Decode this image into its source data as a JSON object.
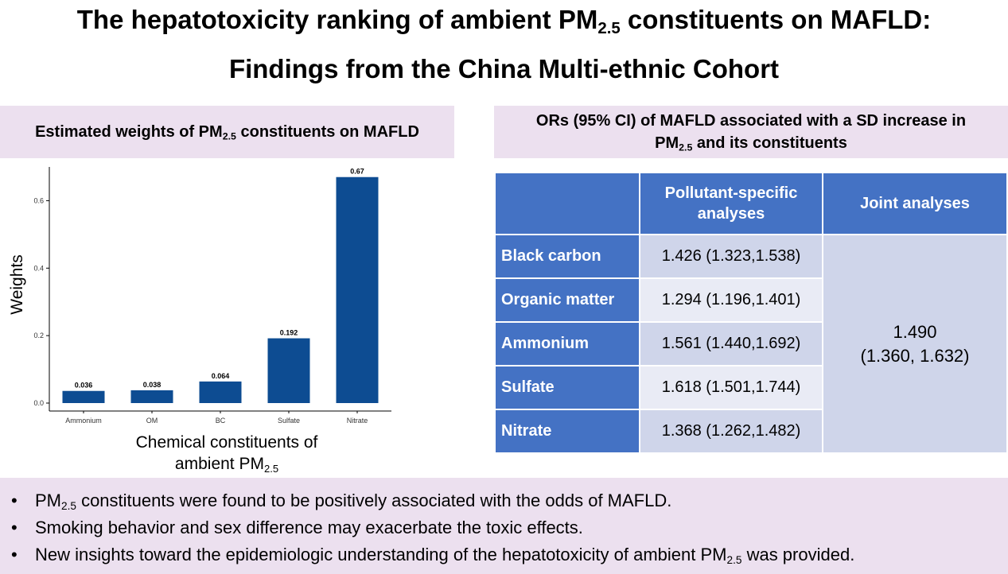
{
  "title": {
    "line1_pre": "The hepatotoxicity ranking of ambient PM",
    "line1_sub": "2.5",
    "line1_post": " constituents on MAFLD:",
    "line2": "Findings from the China Multi-ethnic Cohort"
  },
  "left_panel": {
    "heading_pre": "Estimated weights of PM",
    "heading_sub": "2.5",
    "heading_post": " constituents on MAFLD",
    "xlabel_line1": "Chemical constituents of",
    "xlabel_line2_pre": "ambient PM",
    "xlabel_line2_sub": "2.5"
  },
  "chart_data": {
    "type": "bar",
    "categories": [
      "Ammonium",
      "OM",
      "BC",
      "Sulfate",
      "Nitrate"
    ],
    "values": [
      0.036,
      0.038,
      0.064,
      0.192,
      0.67
    ],
    "data_labels": [
      "0.036",
      "0.038",
      "0.064",
      "0.192",
      "0.67"
    ],
    "ylabel": "Weights",
    "ylim": [
      0,
      0.7
    ],
    "yticks": [
      0.0,
      0.2,
      0.4,
      0.6
    ],
    "ytick_labels": [
      "0.0",
      "0.2",
      "0.4",
      "0.6"
    ],
    "grid": false,
    "bar_color": "#0d4c92"
  },
  "right_panel": {
    "heading_line1": "ORs (95% CI) of MAFLD associated with a SD increase in",
    "heading_line2_pre": "PM",
    "heading_line2_sub": "2.5",
    "heading_line2_post": " and its constituents",
    "table": {
      "col_header_1": "",
      "col_header_2": "Pollutant-specific analyses",
      "col_header_3": "Joint analyses",
      "rows": [
        {
          "label": "Black carbon",
          "value": "1.426 (1.323,1.538)"
        },
        {
          "label": "Organic matter",
          "value": "1.294 (1.196,1.401)"
        },
        {
          "label": "Ammonium",
          "value": "1.561 (1.440,1.692)"
        },
        {
          "label": "Sulfate",
          "value": "1.618 (1.501,1.744)"
        },
        {
          "label": "Nitrate",
          "value": "1.368 (1.262,1.482)"
        }
      ],
      "joint_line1": "1.490",
      "joint_line2": "(1.360, 1.632)"
    },
    "header_color": "#4472c4"
  },
  "findings": {
    "bullet": "•",
    "f1_pre": "PM",
    "f1_sub": "2.5",
    "f1_post": " constituents were found to be positively associated with the odds of MAFLD.",
    "f2": "Smoking behavior and sex difference may exacerbate the toxic effects.",
    "f3_pre": "New insights toward the epidemiologic understanding of the hepatotoxicity of ambient PM",
    "f3_sub": "2.5",
    "f3_post": " was provided."
  }
}
